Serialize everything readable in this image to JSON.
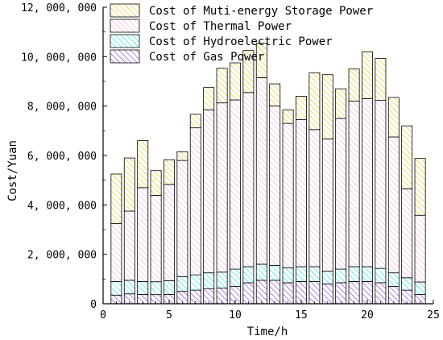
{
  "chart_data": {
    "type": "bar",
    "stacked": true,
    "xlabel": "Time/h",
    "ylabel": "Cost/Yuan",
    "xlim": [
      0,
      25
    ],
    "ylim": [
      0,
      12000000
    ],
    "x_ticks": [
      0,
      5,
      10,
      15,
      20,
      25
    ],
    "y_ticks": [
      0,
      2000000,
      4000000,
      6000000,
      8000000,
      10000000,
      12000000
    ],
    "x_tick_labels": [
      "0",
      "5",
      "10",
      "15",
      "20",
      "25"
    ],
    "y_tick_labels": [
      "0",
      "2, 000, 000",
      "4, 000, 000",
      "6, 000, 000",
      "8, 000, 000",
      "10, 000, 000",
      "12, 000, 000"
    ],
    "legend_position": "top",
    "grid": false,
    "x": [
      1,
      2,
      3,
      4,
      5,
      6,
      7,
      8,
      9,
      10,
      11,
      12,
      13,
      14,
      15,
      16,
      17,
      18,
      19,
      20,
      21,
      22,
      23,
      24
    ],
    "series": [
      {
        "name": "Cost of Gas Power",
        "color": "#8a2be2",
        "values": [
          350000,
          400000,
          380000,
          370000,
          380000,
          500000,
          550000,
          600000,
          630000,
          700000,
          850000,
          950000,
          950000,
          850000,
          900000,
          900000,
          800000,
          850000,
          900000,
          900000,
          850000,
          700000,
          550000,
          380000
        ]
      },
      {
        "name": "Cost of Hydroelectric Power",
        "color": "#00e5ee",
        "values": [
          550000,
          550000,
          520000,
          520000,
          550000,
          600000,
          620000,
          650000,
          650000,
          700000,
          650000,
          650000,
          600000,
          600000,
          600000,
          600000,
          520000,
          550000,
          600000,
          600000,
          580000,
          550000,
          500000,
          500000
        ]
      },
      {
        "name": "Cost of Thermal Power",
        "color": "#f4a6d7",
        "values": [
          2350000,
          2800000,
          3800000,
          3500000,
          3900000,
          4700000,
          5950000,
          6600000,
          6850000,
          6850000,
          7050000,
          7550000,
          6450000,
          5850000,
          5950000,
          5550000,
          5350000,
          6100000,
          6700000,
          6800000,
          6800000,
          5500000,
          3600000,
          2700000
        ]
      },
      {
        "name": "Cost of Muti-energy Storage Power",
        "color": "#e8c400",
        "values": [
          2000000,
          2150000,
          1900000,
          1000000,
          1000000,
          350000,
          550000,
          900000,
          1400000,
          1500000,
          1700000,
          1400000,
          900000,
          550000,
          950000,
          2300000,
          2600000,
          1200000,
          1300000,
          1900000,
          1700000,
          1600000,
          2550000,
          2300000
        ]
      }
    ]
  }
}
